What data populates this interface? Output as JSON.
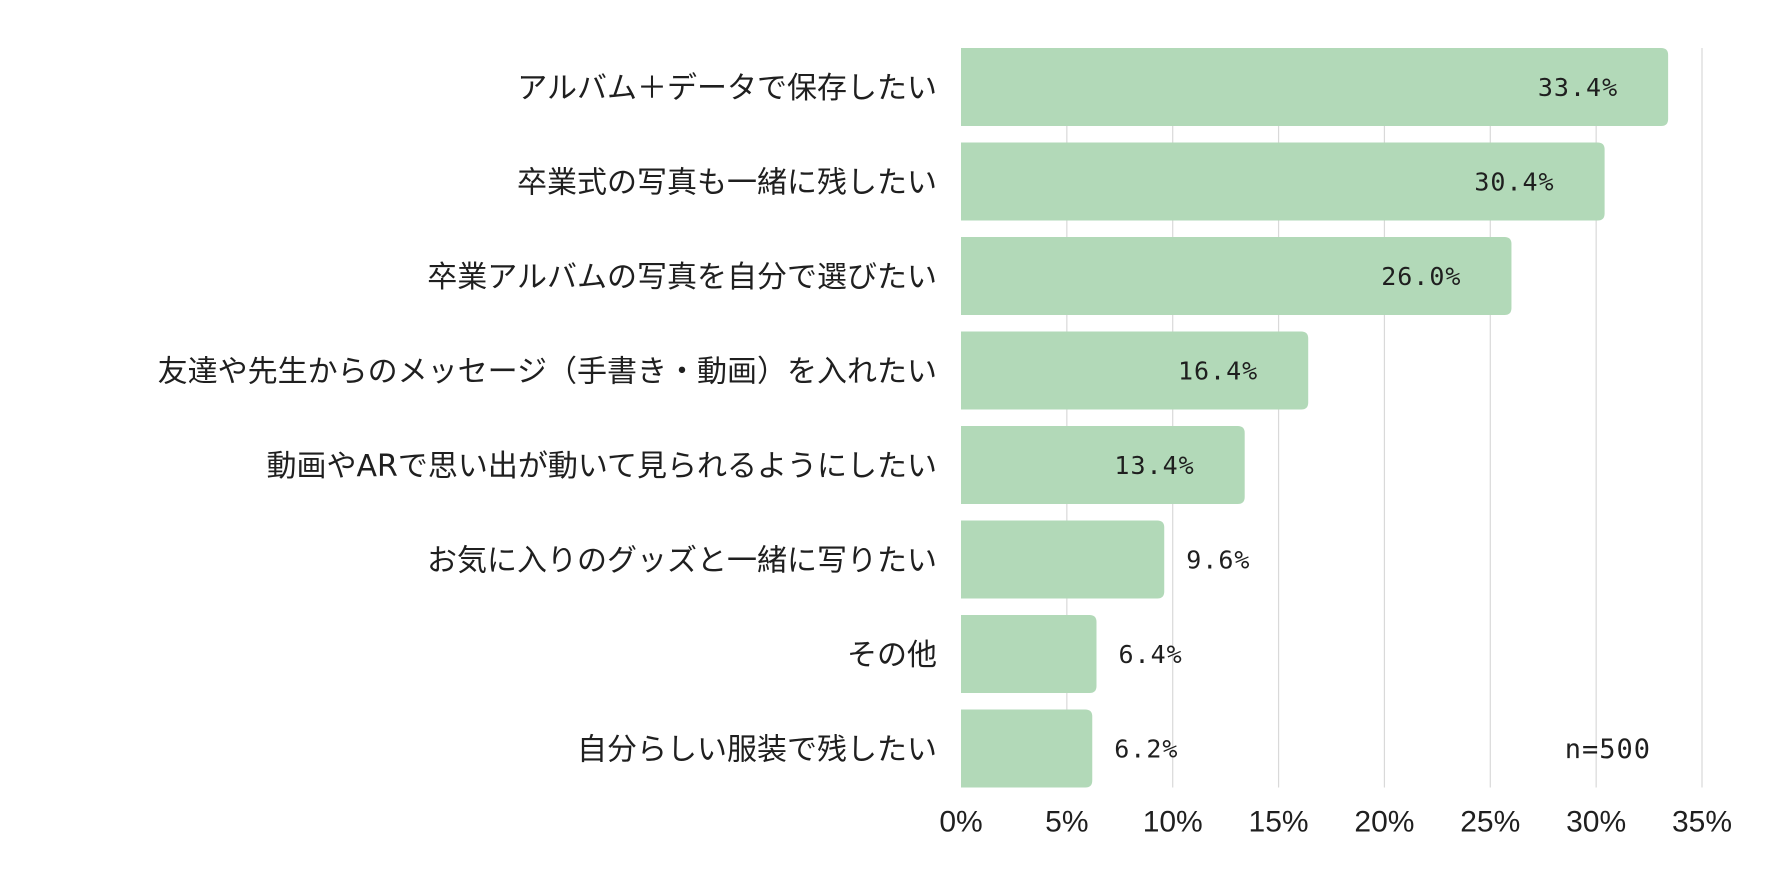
{
  "chart_data": {
    "type": "bar",
    "orientation": "horizontal",
    "categories": [
      "アルバム＋データで保存したい",
      "卒業式の写真も一緒に残したい",
      "卒業アルバムの写真を自分で選びたい",
      "友達や先生からのメッセージ（手書き・動画）を入れたい",
      "動画やARで思い出が動いて見られるようにしたい",
      "お気に入りのグッズと一緒に写りたい",
      "その他",
      "自分らしい服装で残したい"
    ],
    "values": [
      33.4,
      30.4,
      26.0,
      16.4,
      13.4,
      9.6,
      6.4,
      6.2
    ],
    "value_labels": [
      "33.4%",
      "30.4%",
      "26.0%",
      "16.4%",
      "13.4%",
      "9.6%",
      "6.4%",
      "6.2%"
    ],
    "x_ticks": [
      "0%",
      "5%",
      "10%",
      "15%",
      "20%",
      "25%",
      "30%",
      "35%"
    ],
    "xlim": [
      0,
      35
    ],
    "grid": true,
    "note": "n=500",
    "bar_color": "#b2d9b8",
    "grid_color": "#d9d9d9"
  }
}
